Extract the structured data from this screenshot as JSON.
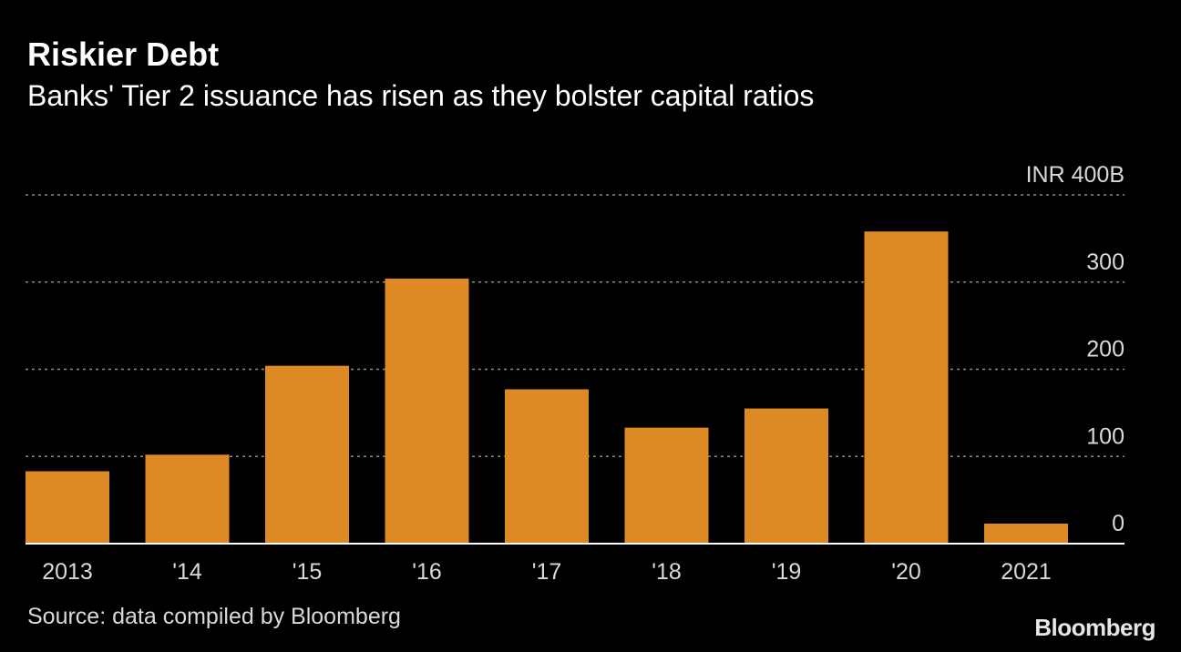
{
  "header": {
    "title": "Riskier Debt",
    "subtitle": "Banks' Tier 2 issuance has risen as they bolster capital ratios"
  },
  "footer": {
    "source": "Source: data compiled by Bloomberg",
    "logo": "Bloomberg"
  },
  "colors": {
    "background": "#000000",
    "bar": "#dd8a24",
    "gridline": "#8c8c8c",
    "axis": "#ffffff",
    "text": "#ffffff"
  },
  "chart_data": {
    "type": "bar",
    "title": "Riskier Debt",
    "subtitle": "Banks' Tier 2 issuance has risen as they bolster capital ratios",
    "categories": [
      "2013",
      "'14",
      "'15",
      "'16",
      "'17",
      "'18",
      "'19",
      "'20",
      "2021"
    ],
    "values": [
      83,
      102,
      204,
      304,
      177,
      133,
      155,
      358,
      23
    ],
    "ylim": [
      0,
      400
    ],
    "yticks": [
      {
        "value": 0,
        "label": "0"
      },
      {
        "value": 100,
        "label": "100"
      },
      {
        "value": 200,
        "label": "200"
      },
      {
        "value": 300,
        "label": "300"
      },
      {
        "value": 400,
        "label": "INR 400B"
      }
    ],
    "y_axis_side": "right",
    "grid": true,
    "legend": "none"
  }
}
